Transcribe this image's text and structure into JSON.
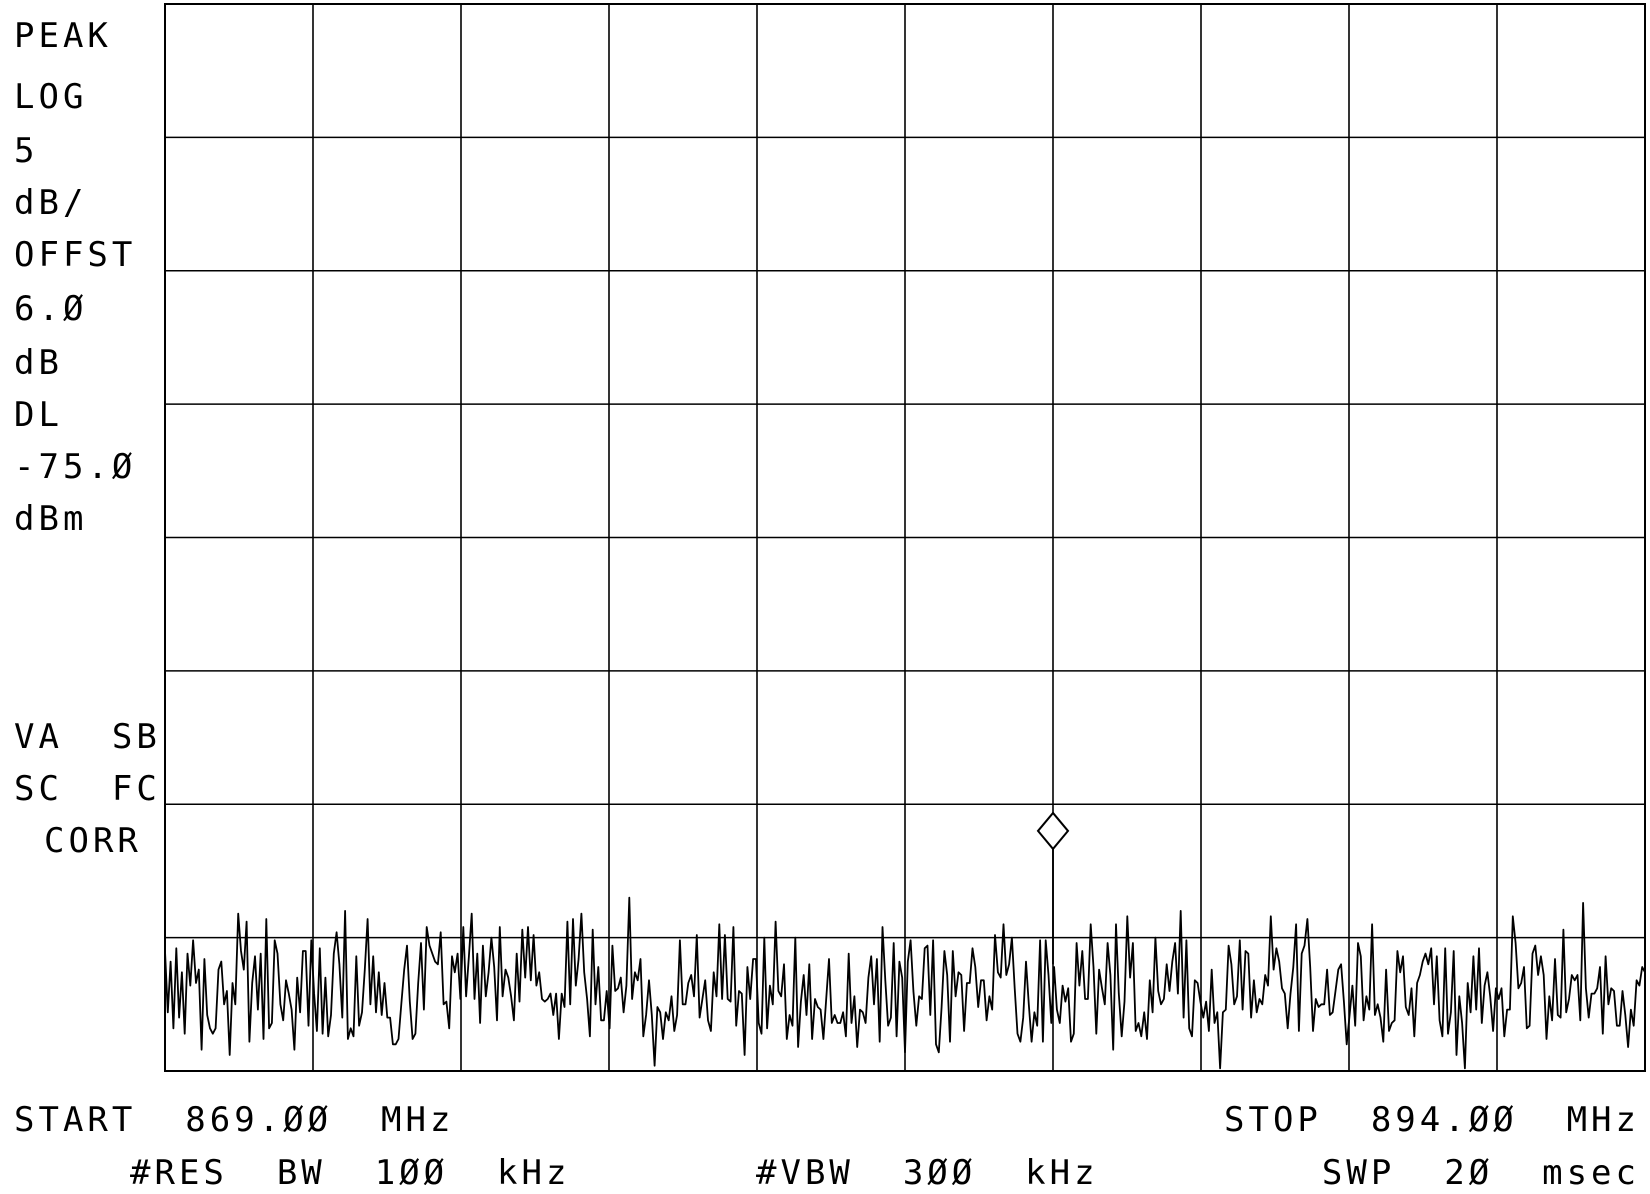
{
  "left_panel": {
    "detector": "PEAK",
    "scale_mode": "LOG",
    "scale_value": "5",
    "scale_unit": "dB/",
    "offset_label": "OFFST",
    "offset_value": "6.Ø",
    "offset_unit": "dB",
    "display_line_label": "DL",
    "display_line_value": "-75.Ø",
    "display_line_unit": "dBm",
    "flags_1": "VA  SB",
    "flags_2": "SC  FC",
    "flags_3": "CORR"
  },
  "footer": {
    "start": "START  869.ØØ  MHz",
    "stop": "STOP  894.ØØ  MHz",
    "res_bw": "#RES  BW  1ØØ  kHz",
    "vbw": "#VBW  3ØØ  kHz",
    "sweep": "SWP  2Ø  msec"
  },
  "colors": {
    "trace": "#000000",
    "grid": "#000000",
    "background": "#ffffff"
  },
  "chart_data": {
    "type": "line",
    "title": "",
    "x_unit": "MHz",
    "xlim": [
      869.0,
      894.0
    ],
    "y_unit": "dB (relative, 5 dB/div)",
    "ylim": [
      -40,
      0
    ],
    "grid": {
      "x_divisions": 10,
      "y_divisions": 8,
      "shown": true
    },
    "display_line_dBm": -75.0,
    "marker": {
      "x": 884.0,
      "y": -31.0,
      "shape": "diamond"
    },
    "series": [
      {
        "values": [
          -35.5,
          -37.8,
          -35.9,
          -38.4,
          -35.4,
          -38.0,
          -36.3,
          -38.6,
          -35.6,
          -36.8,
          -35.1,
          -36.7,
          -36.2,
          -39.2,
          -35.8,
          -37.9,
          -38.4,
          -38.6,
          -38.4,
          -36.2,
          -35.9,
          -37.5,
          -37.0,
          -39.4,
          -36.7,
          -37.5,
          -34.1,
          -35.5,
          -36.2,
          -34.4,
          -38.9,
          -36.7,
          -35.7,
          -37.7,
          -35.6,
          -38.8,
          -34.3,
          -38.4,
          -38.2,
          -35.1,
          -35.6,
          -37.5,
          -38.1,
          -36.6,
          -37.1,
          -37.7,
          -39.2,
          -36.5,
          -37.8,
          -35.5,
          -35.5,
          -38.3,
          -35.1,
          -37.1,
          -38.5,
          -35.4,
          -38.6,
          -36.5,
          -38.7,
          -37.9,
          -35.6,
          -34.8,
          -36.0,
          -38.0,
          -34.0,
          -38.8,
          -38.4,
          -38.7,
          -35.7,
          -38.3,
          -37.8,
          -36.2,
          -34.3,
          -37.5,
          -35.7,
          -37.8,
          -36.3,
          -37.9,
          -36.7,
          -38.0,
          -38.0,
          -39.0,
          -39.0,
          -38.8,
          -37.5,
          -36.2,
          -35.3,
          -37.4,
          -38.8,
          -38.6,
          -36.7,
          -35.2,
          -37.7,
          -34.6,
          -35.3,
          -35.6,
          -35.9,
          -36.0,
          -34.8,
          -37.5,
          -37.4,
          -38.4,
          -35.7,
          -36.3,
          -35.6,
          -37.3,
          -34.6,
          -37.2,
          -35.7,
          -34.1,
          -37.3,
          -35.6,
          -38.2,
          -35.3,
          -37.2,
          -36.3,
          -35.0,
          -36.1,
          -38.1,
          -34.6,
          -37.2,
          -36.2,
          -36.5,
          -37.2,
          -38.1,
          -35.6,
          -37.4,
          -34.7,
          -36.5,
          -34.6,
          -36.6,
          -34.9,
          -36.8,
          -36.3,
          -37.3,
          -37.4,
          -37.3,
          -37.1,
          -37.9,
          -37.1,
          -38.8,
          -37.1,
          -37.6,
          -34.4,
          -37.5,
          -34.3,
          -36.8,
          -35.8,
          -34.1,
          -36.3,
          -37.3,
          -38.7,
          -34.7,
          -37.5,
          -36.1,
          -38.1,
          -38.1,
          -37.0,
          -38.4,
          -35.3,
          -37.0,
          -36.9,
          -36.5,
          -37.8,
          -36.8,
          -33.5,
          -37.3,
          -36.3,
          -36.6,
          -35.8,
          -38.7,
          -37.9,
          -36.6,
          -37.9,
          -39.8,
          -37.6,
          -37.8,
          -38.8,
          -37.8,
          -38.1,
          -37.2,
          -38.5,
          -37.9,
          -35.1,
          -37.5,
          -37.5,
          -36.7,
          -36.4,
          -37.2,
          -34.9,
          -38.0,
          -37.3,
          -36.6,
          -38.1,
          -38.5,
          -36.3,
          -37.2,
          -34.5,
          -37.3,
          -34.9,
          -37.3,
          -37.4,
          -34.6,
          -38.3,
          -37.0,
          -37.1,
          -39.4,
          -36.1,
          -37.3,
          -35.8,
          -35.8,
          -38.2,
          -38.6,
          -35.0,
          -38.4,
          -36.8,
          -37.5,
          -34.4,
          -37.0,
          -37.2,
          -36.0,
          -38.8,
          -37.9,
          -38.3,
          -35.0,
          -39.1,
          -37.4,
          -36.4,
          -37.9,
          -36.0,
          -38.8,
          -37.3,
          -37.6,
          -37.7,
          -38.8,
          -37.3,
          -35.8,
          -38.2,
          -37.9,
          -38.2,
          -38.2,
          -37.8,
          -38.7,
          -35.6,
          -38.2,
          -37.2,
          -39.1,
          -37.7,
          -37.8,
          -38.2,
          -36.5,
          -35.7,
          -37.5,
          -35.8,
          -38.9,
          -34.6,
          -36.6,
          -38.3,
          -38.0,
          -35.2,
          -38.7,
          -35.9,
          -36.5,
          -39.3,
          -35.9,
          -35.1,
          -37.0,
          -38.3,
          -37.2,
          -37.3,
          -35.4,
          -35.3,
          -37.9,
          -35.1,
          -39.0,
          -39.3,
          -37.6,
          -35.5,
          -36.4,
          -38.9,
          -35.5,
          -37.2,
          -36.3,
          -36.4,
          -38.5,
          -36.7,
          -36.7,
          -35.4,
          -36.1,
          -37.6,
          -36.6,
          -36.6,
          -38.1,
          -37.2,
          -37.7,
          -34.9,
          -36.3,
          -36.5,
          -34.5,
          -36.4,
          -36.0,
          -35.0,
          -36.9,
          -38.6,
          -38.9,
          -38.0,
          -35.9,
          -37.5,
          -38.9,
          -37.8,
          -38.3,
          -35.1,
          -38.9,
          -35.1,
          -36.4,
          -38.2,
          -36.1,
          -37.7,
          -38.2,
          -36.8,
          -37.4,
          -36.9,
          -38.9,
          -38.6,
          -35.2,
          -36.8,
          -35.5,
          -37.3,
          -37.3,
          -34.5,
          -36.1,
          -38.6,
          -36.2,
          -36.9,
          -37.5,
          -35.2,
          -36.4,
          -39.2,
          -34.5,
          -37.1,
          -38.7,
          -37.4,
          -34.2,
          -36.5,
          -35.2,
          -38.5,
          -38.2,
          -38.7,
          -37.8,
          -38.8,
          -36.6,
          -37.8,
          -35.0,
          -37.0,
          -37.5,
          -37.3,
          -36.0,
          -37.0,
          -35.9,
          -35.2,
          -37.1,
          -34.0,
          -38.0,
          -35.1,
          -38.4,
          -38.7,
          -36.6,
          -36.7,
          -37.4,
          -38.0,
          -37.4,
          -38.5,
          -36.2,
          -38.2,
          -37.8,
          -39.9,
          -37.8,
          -37.7,
          -35.3,
          -36.0,
          -37.5,
          -37.2,
          -35.1,
          -37.7,
          -35.5,
          -35.6,
          -38.0,
          -36.6,
          -37.8,
          -37.3,
          -37.5,
          -36.4,
          -36.8,
          -34.2,
          -36.2,
          -35.4,
          -35.9,
          -36.9,
          -37.1,
          -38.4,
          -37.1,
          -36.1,
          -34.5,
          -38.5,
          -35.6,
          -35.3,
          -34.3,
          -36.1,
          -38.5,
          -37.3,
          -37.6,
          -37.5,
          -37.5,
          -36.2,
          -37.9,
          -37.8,
          -37.0,
          -36.2,
          -36.0,
          -37.4,
          -39.0,
          -37.9,
          -36.8,
          -38.3,
          -35.2,
          -35.7,
          -38.1,
          -37.2,
          -37.7,
          -34.5,
          -37.9,
          -37.5,
          -38.0,
          -38.9,
          -36.2,
          -38.5,
          -38.2,
          -38.1,
          -35.5,
          -36.3,
          -35.7,
          -37.6,
          -37.9,
          -36.9,
          -38.7,
          -36.7,
          -36.4,
          -35.9,
          -35.6,
          -36.0,
          -35.4,
          -37.5,
          -35.7,
          -38.1,
          -38.7,
          -35.4,
          -38.6,
          -37.8,
          -35.5,
          -39.4,
          -37.2,
          -38.2,
          -39.9,
          -36.7,
          -37.8,
          -35.7,
          -37.7,
          -35.4,
          -38.2,
          -36.8,
          -36.3,
          -37.2,
          -38.5,
          -36.9,
          -37.3,
          -36.9,
          -38.7,
          -37.7,
          -37.7,
          -34.2,
          -35.2,
          -36.9,
          -36.7,
          -36.1,
          -38.4,
          -38.3,
          -35.6,
          -35.3,
          -36.4,
          -35.7,
          -36.4,
          -38.8,
          -37.2,
          -38.1,
          -35.8,
          -37.9,
          -38.0,
          -34.7,
          -37.8,
          -37.3,
          -36.4,
          -36.6,
          -36.4,
          -38.1,
          -33.7,
          -36.9,
          -38.0,
          -37.1,
          -37.1,
          -36.9,
          -36.1,
          -38.6,
          -35.7,
          -37.5,
          -36.9,
          -37.0,
          -38.3,
          -38.3,
          -37.0,
          -37.9,
          -39.1,
          -37.7,
          -38.3,
          -36.6,
          -36.8,
          -36.1,
          -36.3
        ]
      }
    ]
  }
}
